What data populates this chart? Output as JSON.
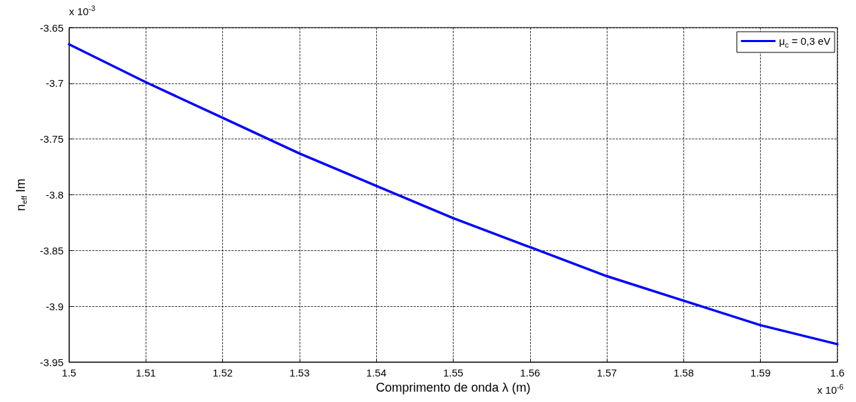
{
  "chart_data": {
    "type": "line",
    "xlabel": "Comprimento de onda λ (m)",
    "ylabel": "n$_{eff}$ Im",
    "annotations": [
      "x 10$^{-3}$",
      "x 10$^{-6}$"
    ],
    "x": [
      1.5,
      1.51,
      1.52,
      1.53,
      1.54,
      1.55,
      1.56,
      1.57,
      1.58,
      1.59,
      1.6
    ],
    "series": [
      {
        "name": "μ$_{c}$ = 0,3 eV",
        "color": "#0000ff",
        "values": [
          -3.665,
          -3.699,
          -3.731,
          -3.763,
          -3.792,
          -3.821,
          -3.847,
          -3.873,
          -3.895,
          -3.917,
          -3.934
        ]
      }
    ],
    "xlim": [
      1.5,
      1.6
    ],
    "xticks": [
      1.5,
      1.51,
      1.52,
      1.53,
      1.54,
      1.55,
      1.56,
      1.57,
      1.58,
      1.59,
      1.6
    ],
    "ylim": [
      -3.95,
      -3.65
    ],
    "yticks": [
      -3.95,
      -3.9,
      -3.85,
      -3.8,
      -3.75,
      -3.7,
      -3.65
    ],
    "grid": true,
    "legend": "top right",
    "marker": "none",
    "line_style": "solid"
  }
}
